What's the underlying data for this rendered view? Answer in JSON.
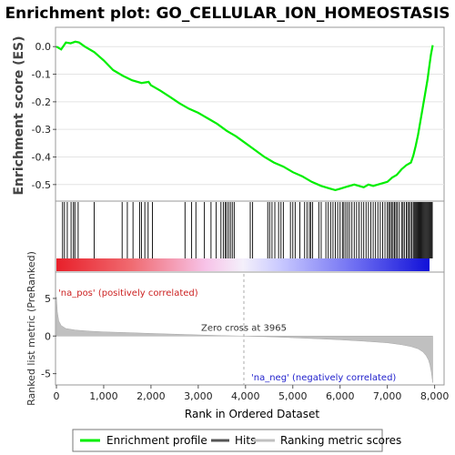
{
  "chart_data": {
    "type": "line",
    "title": "Enrichment plot: GO_CELLULAR_ION_HOMEOSTASIS",
    "xlabel": "Rank in Ordered Dataset",
    "es_panel": {
      "ylabel": "Enrichment score (ES)",
      "ylim": [
        -0.56,
        0.07
      ],
      "yticks": [
        "0.0",
        "-0.1",
        "-0.2",
        "-0.3",
        "-0.4",
        "-0.5"
      ],
      "ytick_values": [
        0.0,
        -0.1,
        -0.2,
        -0.3,
        -0.4,
        -0.5
      ],
      "line_color": "#00ee00",
      "series": [
        {
          "name": "Enrichment profile",
          "x": [
            0,
            100,
            140,
            200,
            300,
            400,
            480,
            600,
            800,
            1000,
            1200,
            1400,
            1600,
            1800,
            1950,
            2000,
            2200,
            2400,
            2600,
            2800,
            3000,
            3200,
            3400,
            3600,
            3800,
            4000,
            4200,
            4400,
            4600,
            4800,
            5000,
            5200,
            5400,
            5600,
            5800,
            5900,
            6000,
            6100,
            6200,
            6300,
            6400,
            6500,
            6600,
            6700,
            6800,
            6900,
            7000,
            7100,
            7200,
            7300,
            7400,
            7500,
            7550,
            7600,
            7650,
            7700,
            7750,
            7800,
            7850,
            7880,
            7920,
            7960
          ],
          "y": [
            0.0,
            -0.01,
            0.0,
            0.015,
            0.012,
            0.018,
            0.015,
            0.0,
            -0.02,
            -0.05,
            -0.085,
            -0.105,
            -0.122,
            -0.132,
            -0.128,
            -0.14,
            -0.16,
            -0.182,
            -0.205,
            -0.225,
            -0.24,
            -0.26,
            -0.28,
            -0.305,
            -0.325,
            -0.35,
            -0.375,
            -0.4,
            -0.42,
            -0.435,
            -0.455,
            -0.47,
            -0.49,
            -0.505,
            -0.515,
            -0.52,
            -0.515,
            -0.51,
            -0.505,
            -0.5,
            -0.505,
            -0.51,
            -0.5,
            -0.505,
            -0.5,
            -0.495,
            -0.49,
            -0.475,
            -0.465,
            -0.445,
            -0.43,
            -0.42,
            -0.395,
            -0.36,
            -0.32,
            -0.27,
            -0.22,
            -0.17,
            -0.12,
            -0.08,
            -0.03,
            0.005
          ]
        }
      ]
    },
    "hits_panel": {
      "hit_color": "#000000",
      "hit_positions": [
        130,
        170,
        230,
        310,
        360,
        390,
        460,
        800,
        1390,
        1500,
        1620,
        1760,
        1800,
        1870,
        1940,
        2030,
        2720,
        2860,
        2950,
        3130,
        3270,
        3380,
        3480,
        3530,
        3570,
        3600,
        3640,
        3680,
        3720,
        3760,
        4100,
        4150,
        4470,
        4510,
        4560,
        4620,
        4700,
        4750,
        4800,
        4950,
        5000,
        5050,
        5150,
        5250,
        5300,
        5350,
        5380,
        5420,
        5550,
        5600,
        5700,
        5750,
        5800,
        5850,
        5900,
        5950,
        6000,
        6050,
        6080,
        6120,
        6160,
        6200,
        6250,
        6300,
        6350,
        6400,
        6450,
        6500,
        6550,
        6600,
        6650,
        6700,
        6750,
        6800,
        6850,
        6900,
        6950,
        7000,
        7030,
        7060,
        7090,
        7120,
        7150,
        7180,
        7210,
        7250,
        7300,
        7330,
        7360,
        7400,
        7430,
        7460,
        7490,
        7520,
        7550,
        7570,
        7590,
        7610,
        7630,
        7650,
        7670,
        7690,
        7710,
        7730,
        7750,
        7770,
        7790,
        7810,
        7830,
        7850,
        7870,
        7890,
        7910,
        7930,
        7950
      ]
    },
    "ranked_panel": {
      "ylabel": "Ranked list metric (PreRanked)",
      "ylim": [
        -6.5,
        8.5
      ],
      "yticks": [
        "-5",
        "0",
        "5"
      ],
      "ytick_values": [
        -5,
        0,
        5
      ],
      "fill_color": "#c0c0c0",
      "x": [
        0,
        20,
        50,
        100,
        200,
        400,
        700,
        1000,
        1500,
        2000,
        2500,
        3000,
        3500,
        3965,
        4500,
        5000,
        5500,
        6000,
        6500,
        7000,
        7300,
        7500,
        7650,
        7750,
        7820,
        7870,
        7900,
        7930,
        7960
      ],
      "y": [
        5.2,
        3.2,
        2.0,
        1.4,
        1.0,
        0.8,
        0.65,
        0.55,
        0.45,
        0.35,
        0.25,
        0.15,
        0.06,
        0.0,
        -0.1,
        -0.22,
        -0.36,
        -0.5,
        -0.68,
        -0.9,
        -1.15,
        -1.4,
        -1.7,
        -2.1,
        -2.6,
        -3.2,
        -3.8,
        -4.8,
        -6.2
      ],
      "zero_cross_label": "Zero cross at 3965",
      "zero_cross": 3965,
      "pos_label": "'na_pos' (positively correlated)",
      "neg_label": "'na_neg' (negatively correlated)"
    },
    "xaxis": {
      "xlim": [
        0,
        8200
      ],
      "xticks": [
        "0",
        "1,000",
        "2,000",
        "3,000",
        "4,000",
        "5,000",
        "6,000",
        "7,000",
        "8,000"
      ],
      "xtick_values": [
        0,
        1000,
        2000,
        3000,
        4000,
        5000,
        6000,
        7000,
        8000
      ],
      "n_genes": 7960
    },
    "legend": {
      "placement": "bottom",
      "items": [
        {
          "label": "Enrichment profile",
          "color": "#00ee00"
        },
        {
          "label": "Hits",
          "color": "#555555"
        },
        {
          "label": "Ranking metric scores",
          "color": "#c0c0c0"
        }
      ]
    }
  }
}
